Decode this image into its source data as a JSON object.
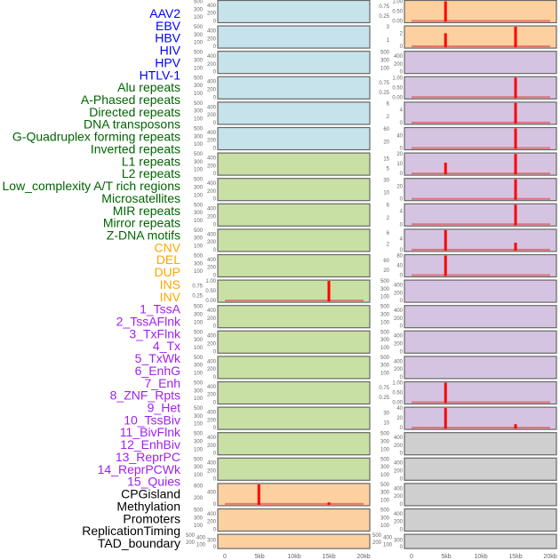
{
  "colors": {
    "virus": "#c6e2ea",
    "repeat": "#c8e0a3",
    "sv": "#fdd09f",
    "chromatin": "#d5c4e1",
    "other": "#cfcfcf",
    "bar": "#ff0000",
    "label_virus": "#0000ff",
    "label_repeat": "#006400",
    "label_sv": "#ffa500",
    "label_chromatin": "#a020f0",
    "label_other": "#000000"
  },
  "chart_data": {
    "type": "bar",
    "title": "",
    "xlabel": "",
    "x_ticks": [
      "0",
      "5kb",
      "10kb",
      "15kb",
      "20kb"
    ],
    "xlim_kb": [
      0,
      20
    ],
    "labels": [
      {
        "text": "AAV2",
        "group": "virus"
      },
      {
        "text": "EBV",
        "group": "virus"
      },
      {
        "text": "HBV",
        "group": "virus"
      },
      {
        "text": "HIV",
        "group": "virus"
      },
      {
        "text": "HPV",
        "group": "virus"
      },
      {
        "text": "HTLV-1",
        "group": "virus"
      },
      {
        "text": "Alu repeats",
        "group": "repeat"
      },
      {
        "text": "A-Phased repeats",
        "group": "repeat"
      },
      {
        "text": "Directed repeats",
        "group": "repeat"
      },
      {
        "text": "DNA transposons",
        "group": "repeat"
      },
      {
        "text": "G-Quadruplex forming repeats",
        "group": "repeat"
      },
      {
        "text": "Inverted repeats",
        "group": "repeat"
      },
      {
        "text": "L1 repeats",
        "group": "repeat"
      },
      {
        "text": "L2 repeats",
        "group": "repeat"
      },
      {
        "text": "Low_complexity A/T rich regions",
        "group": "repeat"
      },
      {
        "text": "Microsatellites",
        "group": "repeat"
      },
      {
        "text": "MIR repeats",
        "group": "repeat"
      },
      {
        "text": "Mirror repeats",
        "group": "repeat"
      },
      {
        "text": "Z-DNA motifs",
        "group": "repeat"
      },
      {
        "text": "CNV",
        "group": "sv"
      },
      {
        "text": "DEL",
        "group": "sv"
      },
      {
        "text": "DUP",
        "group": "sv"
      },
      {
        "text": "INS",
        "group": "sv"
      },
      {
        "text": "INV",
        "group": "sv"
      },
      {
        "text": "1_TssA",
        "group": "chromatin"
      },
      {
        "text": "2_TssAFlnk",
        "group": "chromatin"
      },
      {
        "text": "3_TxFlnk",
        "group": "chromatin"
      },
      {
        "text": "4_Tx",
        "group": "chromatin"
      },
      {
        "text": "5_TxWk",
        "group": "chromatin"
      },
      {
        "text": "6_EnhG",
        "group": "chromatin"
      },
      {
        "text": "7_Enh",
        "group": "chromatin"
      },
      {
        "text": "8_ZNF_Rpts",
        "group": "chromatin"
      },
      {
        "text": "9_Het",
        "group": "chromatin"
      },
      {
        "text": "10_TssBiv",
        "group": "chromatin"
      },
      {
        "text": "11_BivFlnk",
        "group": "chromatin"
      },
      {
        "text": "12_EnhBiv",
        "group": "chromatin"
      },
      {
        "text": "13_ReprPC",
        "group": "chromatin"
      },
      {
        "text": "14_ReprPCWk",
        "group": "chromatin"
      },
      {
        "text": "15_Quies",
        "group": "chromatin"
      },
      {
        "text": "CPGisland",
        "group": "other"
      },
      {
        "text": "Methylation",
        "group": "other"
      },
      {
        "text": "Promoters",
        "group": "other"
      },
      {
        "text": "ReplicationTiming",
        "group": "other"
      },
      {
        "text": "TAD_boundary",
        "group": "other"
      }
    ],
    "panels_left": [
      {
        "bg": "virus"
      },
      {
        "bg": "virus"
      },
      {
        "bg": "virus"
      },
      {
        "bg": "virus"
      },
      {
        "bg": "virus"
      },
      {
        "bg": "virus"
      },
      {
        "bg": "repeat"
      },
      {
        "bg": "repeat"
      },
      {
        "bg": "repeat"
      },
      {
        "bg": "repeat"
      },
      {
        "bg": "repeat"
      },
      {
        "bg": "repeat",
        "yticks": [
          "0.00",
          "0.25",
          "0.50",
          "0.75",
          "1.00"
        ],
        "ymax": 1,
        "bars": [
          {
            "x": 15,
            "v": 1
          }
        ]
      },
      {
        "bg": "repeat"
      },
      {
        "bg": "repeat"
      },
      {
        "bg": "repeat"
      },
      {
        "bg": "repeat"
      },
      {
        "bg": "repeat"
      },
      {
        "bg": "repeat"
      },
      {
        "bg": "repeat"
      },
      {
        "bg": "sv",
        "yticks": [
          "0",
          "200",
          "400",
          "600"
        ],
        "ymax": 650,
        "bars": [
          {
            "x": 4.9,
            "v": 650
          },
          {
            "x": 15,
            "v": 50
          }
        ]
      },
      {
        "bg": "sv"
      },
      {
        "bg": "sv"
      }
    ],
    "panels_right": [
      {
        "bg": "sv",
        "yticks": [
          "0.00",
          "0.25",
          "0.50",
          "0.75",
          "1.00"
        ],
        "ymax": 1,
        "bars": [
          {
            "x": 4.9,
            "v": 1
          }
        ]
      },
      {
        "bg": "sv",
        "yticks": [
          "0",
          "1",
          "2",
          "3"
        ],
        "ymax": 3,
        "bars": [
          {
            "x": 4.9,
            "v": 2
          },
          {
            "x": 15,
            "v": 3
          }
        ]
      },
      {
        "bg": "chromatin"
      },
      {
        "bg": "chromatin",
        "yticks": [
          "0.00",
          "0.25",
          "0.50",
          "0.75",
          "1.00"
        ],
        "ymax": 1,
        "bars": [
          {
            "x": 15,
            "v": 1
          }
        ]
      },
      {
        "bg": "chromatin",
        "yticks": [
          "0",
          "2",
          "4",
          "6"
        ],
        "ymax": 6.2,
        "bars": [
          {
            "x": 15,
            "v": 6.2
          }
        ]
      },
      {
        "bg": "chromatin",
        "yticks": [
          "0",
          "20",
          "40",
          "60"
        ],
        "ymax": 62,
        "bars": [
          {
            "x": 15,
            "v": 62
          }
        ]
      },
      {
        "bg": "chromatin",
        "yticks": [
          "0",
          "5",
          "10",
          "15",
          "20"
        ],
        "ymax": 20,
        "bars": [
          {
            "x": 4.9,
            "v": 11
          },
          {
            "x": 15,
            "v": 20
          }
        ]
      },
      {
        "bg": "chromatin",
        "yticks": [
          "0",
          "10",
          "20",
          "30"
        ],
        "ymax": 31,
        "bars": [
          {
            "x": 15,
            "v": 31
          }
        ]
      },
      {
        "bg": "chromatin",
        "yticks": [
          "0",
          "2",
          "4",
          "6"
        ],
        "ymax": 6,
        "bars": [
          {
            "x": 15,
            "v": 6
          }
        ]
      },
      {
        "bg": "chromatin",
        "yticks": [
          "0",
          "2",
          "4",
          "6"
        ],
        "ymax": 7,
        "bars": [
          {
            "x": 4.9,
            "v": 7
          },
          {
            "x": 15,
            "v": 2.5
          }
        ]
      },
      {
        "bg": "chromatin",
        "yticks": [
          "0",
          "20",
          "40",
          "60",
          "80"
        ],
        "ymax": 80,
        "bars": [
          {
            "x": 4.9,
            "v": 80
          }
        ]
      },
      {
        "bg": "chromatin"
      },
      {
        "bg": "chromatin"
      },
      {
        "bg": "chromatin"
      },
      {
        "bg": "chromatin"
      },
      {
        "bg": "chromatin",
        "yticks": [
          "0.00",
          "0.25",
          "0.50",
          "0.75",
          "1.00"
        ],
        "ymax": 1,
        "bars": [
          {
            "x": 4.9,
            "v": 1
          }
        ]
      },
      {
        "bg": "chromatin",
        "yticks": [
          "0",
          "10",
          "20",
          "30",
          "40"
        ],
        "ymax": 40,
        "bars": [
          {
            "x": 4.9,
            "v": 40
          },
          {
            "x": 15,
            "v": 7
          }
        ]
      },
      {
        "bg": "other"
      },
      {
        "bg": "other"
      },
      {
        "bg": "other"
      },
      {
        "bg": "other"
      },
      {
        "bg": "other"
      }
    ],
    "empty_yticks": [
      "0",
      "100",
      "200",
      "300",
      "400",
      "500"
    ]
  }
}
